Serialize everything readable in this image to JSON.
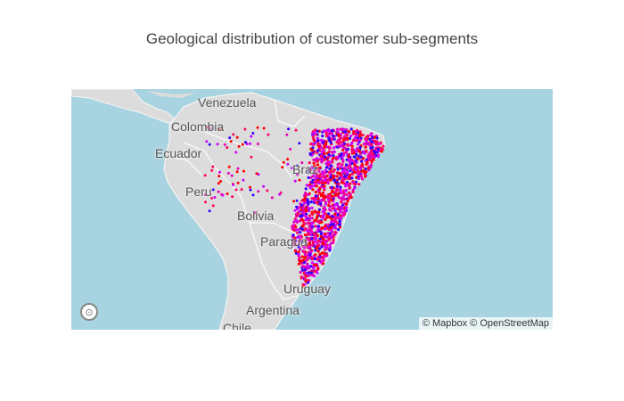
{
  "title": "Geological distribution of customer sub-segments",
  "map": {
    "labels": {
      "venezuela": "Venezuela",
      "colombia": "Colombia",
      "ecuador": "Ecuador",
      "peru": "Peru",
      "bolivia": "Bolivia",
      "paraguay": "Paragua",
      "uruguay": "Uruguay",
      "argentina": "Argentina",
      "chile": "Chile",
      "brazil": "Braz"
    },
    "attribution": "© Mapbox © OpenStreetMap",
    "colors": {
      "ocean": "#a8d3e0",
      "land": "#dcdcdc",
      "border": "#f5f5f5"
    },
    "segment_colors": [
      "#ff0066",
      "#e600b8",
      "#cc00ff",
      "#ff0000",
      "#3300ff"
    ]
  }
}
